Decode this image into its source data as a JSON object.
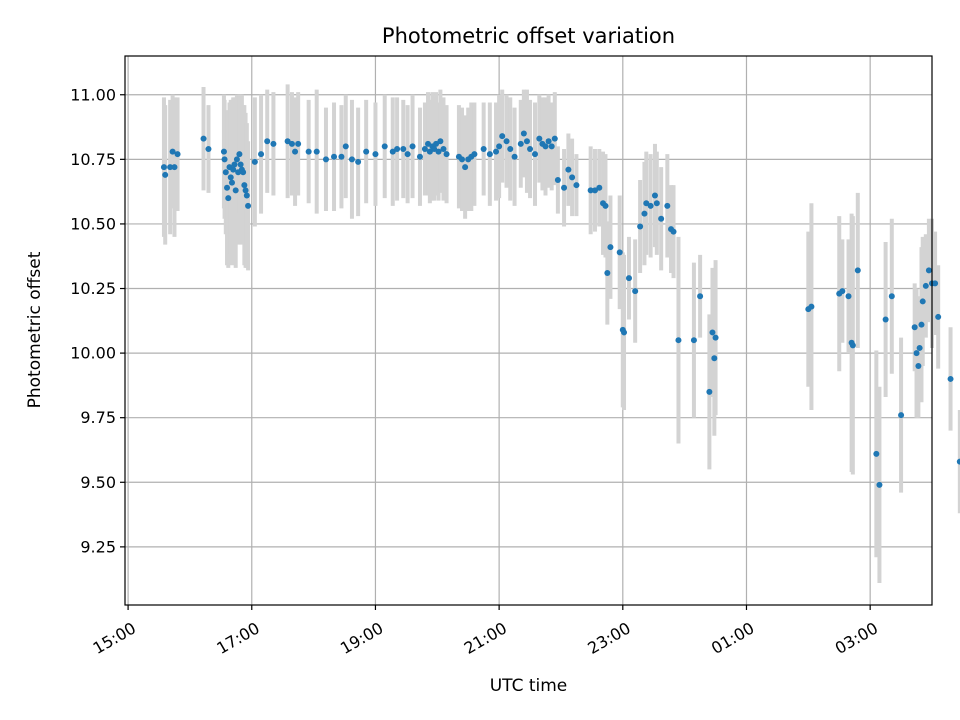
{
  "chart_data": {
    "type": "scatter",
    "title": "Photometric offset variation",
    "xlabel": "UTC time",
    "ylabel": "Photometric offset",
    "x_unit": "hours after 15:00 UTC",
    "xlim": [
      -0.05,
      13.0
    ],
    "ylim": [
      9.025,
      11.15
    ],
    "x_ticks": [
      {
        "value": 0,
        "label": "15:00"
      },
      {
        "value": 2,
        "label": "17:00"
      },
      {
        "value": 4,
        "label": "19:00"
      },
      {
        "value": 6,
        "label": "21:00"
      },
      {
        "value": 8,
        "label": "23:00"
      },
      {
        "value": 10,
        "label": "01:00"
      },
      {
        "value": 12,
        "label": "03:00"
      }
    ],
    "y_ticks": [
      {
        "value": 9.25,
        "label": "9.25"
      },
      {
        "value": 9.5,
        "label": "9.50"
      },
      {
        "value": 9.75,
        "label": "9.75"
      },
      {
        "value": 10.0,
        "label": "10.00"
      },
      {
        "value": 10.25,
        "label": "10.25"
      },
      {
        "value": 10.5,
        "label": "10.50"
      },
      {
        "value": 10.75,
        "label": "10.75"
      },
      {
        "value": 11.0,
        "label": "11.00"
      }
    ],
    "grid": true,
    "marker_color": "#1f77b4",
    "errorbar_color": "#d3d3d3",
    "points": [
      [
        0.58,
        10.72,
        0.27
      ],
      [
        0.6,
        10.69,
        0.27
      ],
      [
        0.68,
        10.72,
        0.26
      ],
      [
        0.72,
        10.78,
        0.22
      ],
      [
        0.75,
        10.72,
        0.27
      ],
      [
        0.8,
        10.77,
        0.22
      ],
      [
        1.22,
        10.83,
        0.2
      ],
      [
        1.3,
        10.79,
        0.17
      ],
      [
        1.55,
        10.78,
        0.22
      ],
      [
        1.56,
        10.75,
        0.23
      ],
      [
        1.58,
        10.7,
        0.24
      ],
      [
        1.6,
        10.64,
        0.3
      ],
      [
        1.62,
        10.6,
        0.27
      ],
      [
        1.64,
        10.72,
        0.25
      ],
      [
        1.66,
        10.68,
        0.3
      ],
      [
        1.68,
        10.66,
        0.32
      ],
      [
        1.7,
        10.71,
        0.28
      ],
      [
        1.72,
        10.73,
        0.26
      ],
      [
        1.74,
        10.63,
        0.3
      ],
      [
        1.76,
        10.75,
        0.25
      ],
      [
        1.78,
        10.7,
        0.28
      ],
      [
        1.8,
        10.77,
        0.23
      ],
      [
        1.82,
        10.73,
        0.27
      ],
      [
        1.84,
        10.71,
        0.29
      ],
      [
        1.86,
        10.7,
        0.26
      ],
      [
        1.88,
        10.65,
        0.31
      ],
      [
        1.9,
        10.63,
        0.3
      ],
      [
        1.92,
        10.61,
        0.28
      ],
      [
        1.94,
        10.57,
        0.25
      ],
      [
        2.05,
        10.74,
        0.25
      ],
      [
        2.15,
        10.77,
        0.23
      ],
      [
        2.25,
        10.82,
        0.2
      ],
      [
        2.35,
        10.81,
        0.2
      ],
      [
        2.58,
        10.82,
        0.22
      ],
      [
        2.65,
        10.81,
        0.2
      ],
      [
        2.7,
        10.78,
        0.21
      ],
      [
        2.75,
        10.81,
        0.2
      ],
      [
        2.92,
        10.78,
        0.2
      ],
      [
        3.05,
        10.78,
        0.24
      ],
      [
        3.2,
        10.75,
        0.2
      ],
      [
        3.33,
        10.76,
        0.21
      ],
      [
        3.45,
        10.76,
        0.2
      ],
      [
        3.52,
        10.8,
        0.2
      ],
      [
        3.62,
        10.75,
        0.23
      ],
      [
        3.72,
        10.74,
        0.21
      ],
      [
        3.85,
        10.78,
        0.2
      ],
      [
        4.0,
        10.77,
        0.2
      ],
      [
        4.15,
        10.8,
        0.2
      ],
      [
        4.28,
        10.78,
        0.21
      ],
      [
        4.35,
        10.79,
        0.2
      ],
      [
        4.45,
        10.79,
        0.19
      ],
      [
        4.52,
        10.77,
        0.19
      ],
      [
        4.6,
        10.8,
        0.2
      ],
      [
        4.72,
        10.76,
        0.19
      ],
      [
        4.8,
        10.79,
        0.18
      ],
      [
        4.85,
        10.81,
        0.2
      ],
      [
        4.88,
        10.78,
        0.2
      ],
      [
        4.92,
        10.8,
        0.21
      ],
      [
        4.95,
        10.79,
        0.2
      ],
      [
        4.98,
        10.81,
        0.2
      ],
      [
        5.02,
        10.78,
        0.19
      ],
      [
        5.05,
        10.82,
        0.2
      ],
      [
        5.1,
        10.79,
        0.2
      ],
      [
        5.15,
        10.77,
        0.19
      ],
      [
        5.35,
        10.76,
        0.2
      ],
      [
        5.4,
        10.75,
        0.2
      ],
      [
        5.45,
        10.72,
        0.2
      ],
      [
        5.5,
        10.75,
        0.2
      ],
      [
        5.55,
        10.76,
        0.21
      ],
      [
        5.6,
        10.77,
        0.2
      ],
      [
        5.75,
        10.79,
        0.18
      ],
      [
        5.85,
        10.77,
        0.2
      ],
      [
        5.95,
        10.78,
        0.19
      ],
      [
        6.0,
        10.8,
        0.2
      ],
      [
        6.05,
        10.84,
        0.18
      ],
      [
        6.12,
        10.82,
        0.18
      ],
      [
        6.18,
        10.79,
        0.2
      ],
      [
        6.25,
        10.76,
        0.19
      ],
      [
        6.35,
        10.81,
        0.17
      ],
      [
        6.4,
        10.85,
        0.17
      ],
      [
        6.45,
        10.82,
        0.2
      ],
      [
        6.5,
        10.79,
        0.19
      ],
      [
        6.58,
        10.77,
        0.2
      ],
      [
        6.65,
        10.83,
        0.17
      ],
      [
        6.7,
        10.81,
        0.18
      ],
      [
        6.75,
        10.8,
        0.19
      ],
      [
        6.8,
        10.82,
        0.18
      ],
      [
        6.85,
        10.8,
        0.17
      ],
      [
        6.9,
        10.83,
        0.18
      ],
      [
        6.95,
        10.67,
        0.13
      ],
      [
        7.05,
        10.64,
        0.15
      ],
      [
        7.12,
        10.71,
        0.14
      ],
      [
        7.18,
        10.68,
        0.15
      ],
      [
        7.25,
        10.65,
        0.12
      ],
      [
        7.48,
        10.63,
        0.17
      ],
      [
        7.55,
        10.63,
        0.16
      ],
      [
        7.62,
        10.64,
        0.15
      ],
      [
        7.68,
        10.58,
        0.2
      ],
      [
        7.72,
        10.57,
        0.2
      ],
      [
        7.75,
        10.31,
        0.2
      ],
      [
        7.8,
        10.41,
        0.2
      ],
      [
        7.95,
        10.39,
        0.22
      ],
      [
        8.0,
        10.09,
        0.3
      ],
      [
        8.02,
        10.08,
        0.3
      ],
      [
        8.1,
        10.29,
        0.16
      ],
      [
        8.2,
        10.24,
        0.2
      ],
      [
        8.28,
        10.49,
        0.18
      ],
      [
        8.35,
        10.54,
        0.2
      ],
      [
        8.38,
        10.58,
        0.2
      ],
      [
        8.45,
        10.57,
        0.2
      ],
      [
        8.52,
        10.61,
        0.2
      ],
      [
        8.55,
        10.58,
        0.2
      ],
      [
        8.62,
        10.52,
        0.2
      ],
      [
        8.72,
        10.57,
        0.2
      ],
      [
        8.78,
        10.48,
        0.17
      ],
      [
        8.82,
        10.47,
        0.18
      ],
      [
        8.9,
        10.05,
        0.4
      ],
      [
        9.15,
        10.05,
        0.3
      ],
      [
        9.25,
        10.22,
        0.16
      ],
      [
        9.4,
        9.85,
        0.3
      ],
      [
        9.45,
        10.08,
        0.25
      ],
      [
        9.48,
        9.98,
        0.3
      ],
      [
        9.5,
        10.06,
        0.3
      ],
      [
        11.0,
        10.17,
        0.3
      ],
      [
        11.05,
        10.18,
        0.4
      ],
      [
        11.5,
        10.23,
        0.3
      ],
      [
        11.55,
        10.24,
        0.2
      ],
      [
        11.65,
        10.22,
        0.22
      ],
      [
        11.7,
        10.04,
        0.5
      ],
      [
        11.72,
        10.03,
        0.5
      ],
      [
        11.8,
        10.32,
        0.3
      ],
      [
        12.1,
        9.61,
        0.4
      ],
      [
        12.15,
        9.49,
        0.38
      ],
      [
        12.25,
        10.13,
        0.3
      ],
      [
        12.35,
        10.22,
        0.3
      ],
      [
        12.5,
        9.76,
        0.3
      ],
      [
        12.72,
        10.1,
        0.17
      ],
      [
        12.75,
        10.0,
        0.25
      ],
      [
        12.78,
        9.95,
        0.2
      ],
      [
        12.8,
        10.02,
        0.2
      ],
      [
        12.83,
        10.11,
        0.3
      ],
      [
        12.85,
        10.2,
        0.25
      ],
      [
        12.9,
        10.26,
        0.2
      ],
      [
        12.95,
        10.32,
        0.2
      ],
      [
        13.0,
        10.27,
        0.25
      ],
      [
        13.05,
        10.27,
        0.2
      ],
      [
        13.1,
        10.14,
        0.2
      ],
      [
        13.3,
        9.9,
        0.2
      ],
      [
        13.45,
        9.58,
        0.2
      ]
    ]
  }
}
